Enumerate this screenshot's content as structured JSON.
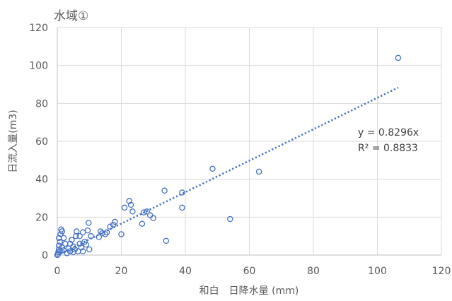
{
  "chart_data": {
    "type": "scatter",
    "title": "水域①",
    "xlabel": "和白　日降水量 (mm)",
    "ylabel": "日流入量(m3)",
    "xlim": [
      0,
      120
    ],
    "ylim": [
      0,
      120
    ],
    "xticks": [
      0,
      20,
      40,
      60,
      80,
      100,
      120
    ],
    "yticks": [
      0,
      20,
      40,
      60,
      80,
      100,
      120
    ],
    "grid": true,
    "marker_color": "#4472c4",
    "series": [
      {
        "points": [
          [
            0,
            0
          ],
          [
            0.2,
            0.5
          ],
          [
            0.3,
            1.5
          ],
          [
            0.5,
            3
          ],
          [
            0.5,
            5
          ],
          [
            0.8,
            7
          ],
          [
            0.5,
            9
          ],
          [
            1,
            11
          ],
          [
            1.5,
            12.5
          ],
          [
            1.2,
            13.5
          ],
          [
            1,
            2
          ],
          [
            1.5,
            4
          ],
          [
            2,
            2.5
          ],
          [
            2.5,
            6
          ],
          [
            2,
            9
          ],
          [
            3,
            1
          ],
          [
            3.5,
            3.5
          ],
          [
            4,
            2
          ],
          [
            4,
            6
          ],
          [
            4.5,
            8
          ],
          [
            5,
            1.5
          ],
          [
            5,
            4.5
          ],
          [
            5.5,
            3
          ],
          [
            5.8,
            10
          ],
          [
            6,
            12.5
          ],
          [
            6.5,
            2
          ],
          [
            7,
            6
          ],
          [
            7,
            10
          ],
          [
            7.5,
            4
          ],
          [
            8,
            2
          ],
          [
            8,
            12
          ],
          [
            8.5,
            7
          ],
          [
            9,
            5.5
          ],
          [
            9.5,
            13
          ],
          [
            9.8,
            17
          ],
          [
            10,
            3
          ],
          [
            10.5,
            10
          ],
          [
            13,
            9.5
          ],
          [
            13.5,
            12.5
          ],
          [
            14,
            11.5
          ],
          [
            15,
            11
          ],
          [
            15.5,
            12
          ],
          [
            16.5,
            15
          ],
          [
            17.5,
            16
          ],
          [
            18,
            17.5
          ],
          [
            20,
            11
          ],
          [
            21,
            25
          ],
          [
            22.5,
            28.5
          ],
          [
            23,
            26.5
          ],
          [
            23.5,
            23
          ],
          [
            26.5,
            16.5
          ],
          [
            27,
            22.5
          ],
          [
            28,
            23
          ],
          [
            29,
            21
          ],
          [
            30,
            19.5
          ],
          [
            33.5,
            34
          ],
          [
            34,
            7.5
          ],
          [
            39,
            25
          ],
          [
            39,
            33
          ],
          [
            48.5,
            45.5
          ],
          [
            54,
            19
          ],
          [
            63,
            44
          ],
          [
            106.5,
            104
          ]
        ]
      }
    ],
    "trendline": {
      "type": "linear",
      "slope": 0.8296,
      "intercept": 0,
      "x_range": [
        0,
        106.5
      ],
      "equation": "y = 0.8296x",
      "r2": "R² = 0.8833"
    }
  }
}
